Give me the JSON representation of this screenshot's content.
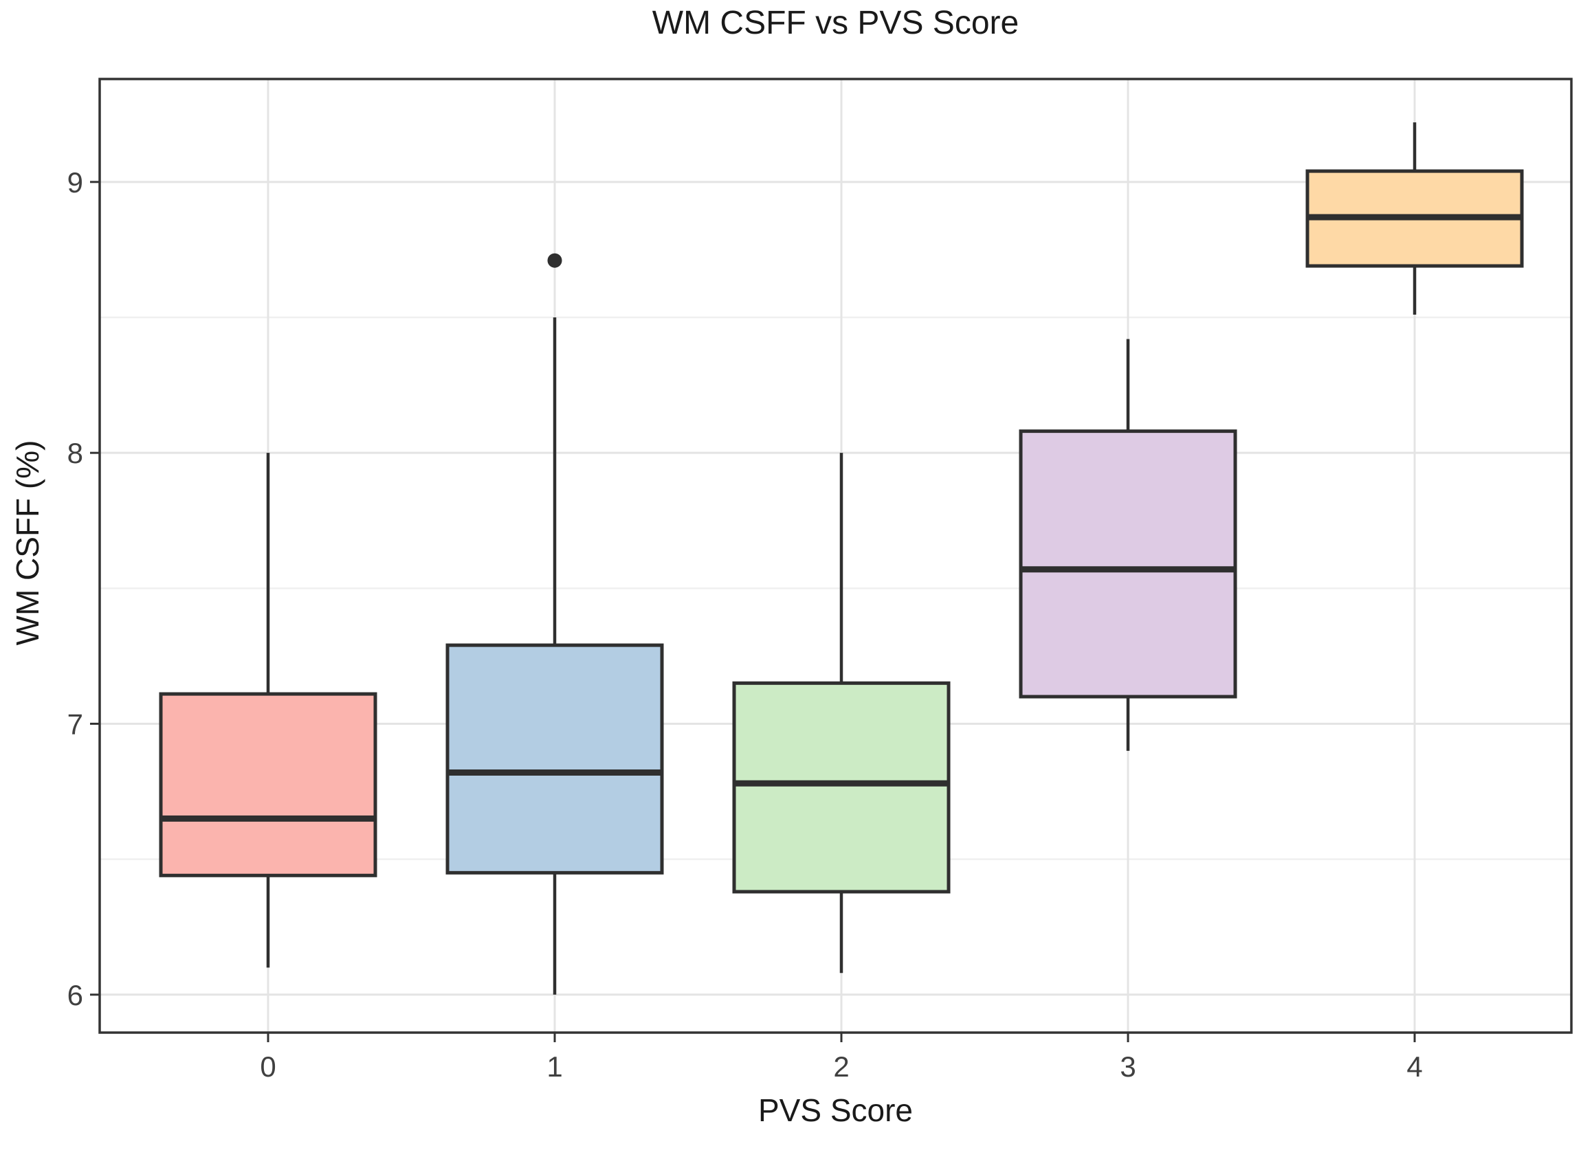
{
  "chart_data": {
    "type": "boxplot",
    "title": "WM CSFF vs PVS Score",
    "xlabel": "PVS Score",
    "ylabel": "WM CSFF (%)",
    "categories": [
      "0",
      "1",
      "2",
      "3",
      "4"
    ],
    "ylim": [
      5.86,
      9.38
    ],
    "yticks_major": [
      6,
      7,
      8,
      9
    ],
    "yticks_minor": [
      6.5,
      7.5,
      8.5
    ],
    "grid": "horizontal major+minor, vertical major at categories",
    "legend": "none",
    "series": [
      {
        "category": "0",
        "min": 6.1,
        "q1": 6.44,
        "median": 6.65,
        "q3": 7.11,
        "max": 8.0,
        "outliers": [],
        "fill": "#FBB4AE"
      },
      {
        "category": "1",
        "min": 6.0,
        "q1": 6.45,
        "median": 6.82,
        "q3": 7.29,
        "max": 8.5,
        "outliers": [
          8.71
        ],
        "fill": "#B3CDE3"
      },
      {
        "category": "2",
        "min": 6.08,
        "q1": 6.38,
        "median": 6.78,
        "q3": 7.15,
        "max": 8.0,
        "outliers": [],
        "fill": "#CCEBC5"
      },
      {
        "category": "3",
        "min": 6.9,
        "q1": 7.1,
        "median": 7.57,
        "q3": 8.08,
        "max": 8.42,
        "outliers": [],
        "fill": "#DECBE4"
      },
      {
        "category": "4",
        "min": 8.51,
        "q1": 8.69,
        "median": 8.87,
        "q3": 9.04,
        "max": 9.22,
        "outliers": [],
        "fill": "#FED9A6"
      }
    ],
    "colors": {
      "box_stroke": "#2f2f2f",
      "median_stroke": "#2f2f2f",
      "whisker_stroke": "#2f2f2f",
      "outlier_fill": "#2f2f2f",
      "grid_major": "#e4e4e4",
      "grid_minor": "#f0f0f0",
      "panel_border": "#333333",
      "tick_mark": "#333333",
      "tick_label": "#404040",
      "background": "#ffffff"
    }
  }
}
